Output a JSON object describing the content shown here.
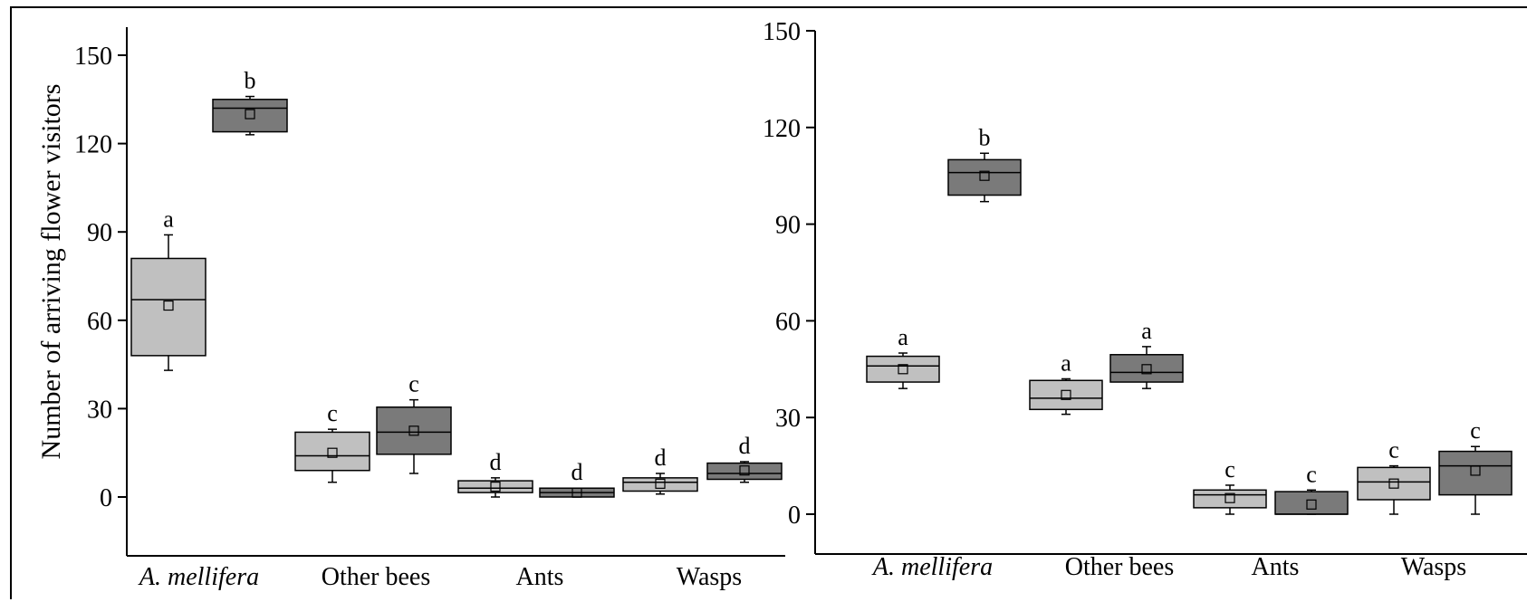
{
  "colors": {
    "background": "#ffffff",
    "series_light": "#c0c0c0",
    "series_dark": "#7a7a7a",
    "stroke": "#000000"
  },
  "chart_data": [
    {
      "type": "box",
      "ylabel": "Number of arriving flower visitors",
      "ylim": [
        -20,
        160
      ],
      "yticks": [
        "0",
        "30",
        "60",
        "90",
        "120",
        "150"
      ],
      "categories": [
        "A. mellifera",
        "Other bees",
        "Ants",
        "Wasps"
      ],
      "category_italic": [
        true,
        false,
        false,
        false
      ],
      "grid": false,
      "legend": "none",
      "boxes": [
        {
          "category": "A. mellifera",
          "series": "light",
          "min": 43,
          "q1": 48,
          "median": 67,
          "q3": 81,
          "max": 89,
          "mean": 65,
          "letter": "a"
        },
        {
          "category": "A. mellifera",
          "series": "dark",
          "min": 123,
          "q1": 124,
          "median": 132,
          "q3": 135,
          "max": 136,
          "mean": 130,
          "letter": "b"
        },
        {
          "category": "Other bees",
          "series": "light",
          "min": 5,
          "q1": 9,
          "median": 14,
          "q3": 22,
          "max": 23,
          "mean": 15,
          "letter": "c"
        },
        {
          "category": "Other bees",
          "series": "dark",
          "min": 8,
          "q1": 14.5,
          "median": 22,
          "q3": 30.5,
          "max": 33,
          "mean": 22.5,
          "letter": "c"
        },
        {
          "category": "Ants",
          "series": "light",
          "min": 0,
          "q1": 1.5,
          "median": 3,
          "q3": 5.5,
          "max": 6.5,
          "mean": 3.5,
          "letter": "d"
        },
        {
          "category": "Ants",
          "series": "dark",
          "min": 0,
          "q1": 0,
          "median": 1.5,
          "q3": 3,
          "max": 3,
          "mean": 1.5,
          "letter": "d"
        },
        {
          "category": "Wasps",
          "series": "light",
          "min": 1,
          "q1": 2,
          "median": 5,
          "q3": 6.5,
          "max": 8,
          "mean": 4.5,
          "letter": "d"
        },
        {
          "category": "Wasps",
          "series": "dark",
          "min": 5,
          "q1": 6,
          "median": 8,
          "q3": 11.5,
          "max": 12,
          "mean": 9,
          "letter": "d"
        }
      ]
    },
    {
      "type": "box",
      "ylabel": "",
      "ylim": [
        -10,
        150
      ],
      "yticks": [
        "0",
        "30",
        "60",
        "90",
        "120",
        "150"
      ],
      "categories": [
        "A. mellifera",
        "Other bees",
        "Ants",
        "Wasps"
      ],
      "category_italic": [
        true,
        false,
        false,
        false
      ],
      "grid": false,
      "legend": "none",
      "boxes": [
        {
          "category": "A. mellifera",
          "series": "light",
          "min": 39,
          "q1": 41,
          "median": 46,
          "q3": 49,
          "max": 50,
          "mean": 45,
          "letter": "a"
        },
        {
          "category": "A. mellifera",
          "series": "dark",
          "min": 97,
          "q1": 99,
          "median": 106,
          "q3": 110,
          "max": 112,
          "mean": 105,
          "letter": "b"
        },
        {
          "category": "Other bees",
          "series": "light",
          "min": 31,
          "q1": 32.5,
          "median": 36,
          "q3": 41.5,
          "max": 42,
          "mean": 37,
          "letter": "a"
        },
        {
          "category": "Other bees",
          "series": "dark",
          "min": 39,
          "q1": 41,
          "median": 44,
          "q3": 49.5,
          "max": 52,
          "mean": 45,
          "letter": "a"
        },
        {
          "category": "Ants",
          "series": "light",
          "min": 0,
          "q1": 2,
          "median": 6,
          "q3": 7.5,
          "max": 9,
          "mean": 5,
          "letter": "c"
        },
        {
          "category": "Ants",
          "series": "dark",
          "min": 0,
          "q1": 0,
          "median": 0,
          "q3": 7,
          "max": 7.5,
          "mean": 3,
          "letter": "c"
        },
        {
          "category": "Wasps",
          "series": "light",
          "min": 0,
          "q1": 4.5,
          "median": 10,
          "q3": 14.5,
          "max": 15,
          "mean": 9.5,
          "letter": "c"
        },
        {
          "category": "Wasps",
          "series": "dark",
          "min": 0,
          "q1": 6,
          "median": 15,
          "q3": 19.5,
          "max": 21,
          "mean": 13.5,
          "letter": "c"
        }
      ]
    }
  ]
}
